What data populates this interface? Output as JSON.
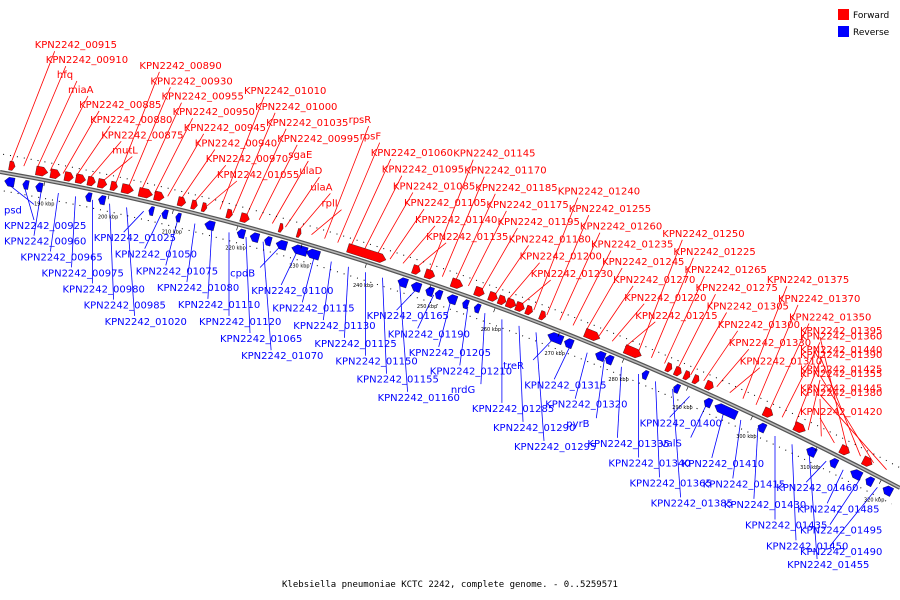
{
  "caption": "Klebsiella pneumoniae KCTC 2242, complete genome. - 0..5259571",
  "legend": [
    {
      "label": "Forward",
      "color": "#ff0000"
    },
    {
      "label": "Reverse",
      "color": "#0000ff"
    }
  ],
  "colors": {
    "forward": "#ff0000",
    "reverse": "#0000ff",
    "backbone": "#888888"
  },
  "ticks": [
    "190 kbp",
    "200 kbp",
    "210 kbp",
    "220 kbp",
    "230 kbp",
    "240 kbp",
    "250 kbp",
    "260 kbp",
    "270 kbp",
    "280 kbp",
    "290 kbp",
    "300 kbp",
    "310 kbp",
    "320 kbp"
  ],
  "forward_labels": [
    "KPN2242_00915",
    "KPN2242_00910",
    "hfq",
    "miaA",
    "KPN2242_00885",
    "KPN2242_00880",
    "KPN2242_00875",
    "mutL",
    "KPN2242_00890",
    "KPN2242_00930",
    "KPN2242_00955",
    "KPN2242_00950",
    "KPN2242_00945",
    "KPN2242_00940",
    "KPN2242_00970",
    "KPN2242_01055",
    "KPN2242_01010",
    "KPN2242_01000",
    "KPN2242_01035",
    "KPN2242_00995",
    "sgaE",
    "ulaD",
    "ulaA",
    "rplI",
    "rpsR",
    "rpsF",
    "KPN2242_01060",
    "KPN2242_01095",
    "KPN2242_01085",
    "KPN2242_01105",
    "KPN2242_01140",
    "KPN2242_01135",
    "KPN2242_01145",
    "KPN2242_01170",
    "KPN2242_01185",
    "KPN2242_01175",
    "KPN2242_01195",
    "KPN2242_01180",
    "KPN2242_01200",
    "KPN2242_01230",
    "KPN2242_01240",
    "KPN2242_01255",
    "KPN2242_01260",
    "KPN2242_01235",
    "KPN2242_01245",
    "KPN2242_01270",
    "KPN2242_01220",
    "KPN2242_01215",
    "KPN2242_01250",
    "KPN2242_01225",
    "KPN2242_01265",
    "KPN2242_01275",
    "KPN2242_01305",
    "KPN2242_01300",
    "KPN2242_01330",
    "KPN2242_01310",
    "KPN2242_01375",
    "KPN2242_01370",
    "KPN2242_01350",
    "KPN2242_01360",
    "KPN2242_01390",
    "KPN2242_01355",
    "KPN2242_01380",
    "KPN2242_01420",
    "KPN2242_01395",
    "KPN2242_01440",
    "KPN2242_01425",
    "KPN2242_01445"
  ],
  "reverse_labels": [
    "psd",
    "KPN2242_00925",
    "KPN2242_00960",
    "KPN2242_00965",
    "KPN2242_00975",
    "KPN2242_00980",
    "KPN2242_00985",
    "KPN2242_01020",
    "KPN2242_01025",
    "KPN2242_01050",
    "KPN2242_01075",
    "KPN2242_01080",
    "KPN2242_01110",
    "KPN2242_01120",
    "KPN2242_01065",
    "KPN2242_01070",
    "cpdB",
    "KPN2242_01100",
    "KPN2242_01115",
    "KPN2242_01130",
    "KPN2242_01125",
    "KPN2242_01150",
    "KPN2242_01155",
    "KPN2242_01160",
    "KPN2242_01165",
    "KPN2242_01190",
    "KPN2242_01205",
    "KPN2242_01210",
    "nrdG",
    "KPN2242_01285",
    "KPN2242_01290",
    "KPN2242_01295",
    "treR",
    "KPN2242_01315",
    "KPN2242_01320",
    "pyrB",
    "KPN2242_01335",
    "KPN2242_01340",
    "KPN2242_01365",
    "KPN2242_01385",
    "KPN2242_01400",
    "valS",
    "KPN2242_01410",
    "KPN2242_01415",
    "KPN2242_01430",
    "KPN2242_01435",
    "KPN2242_01450",
    "KPN2242_01455",
    "KPN2242_01460",
    "KPN2242_01485",
    "KPN2242_01495",
    "KPN2242_01490"
  ]
}
